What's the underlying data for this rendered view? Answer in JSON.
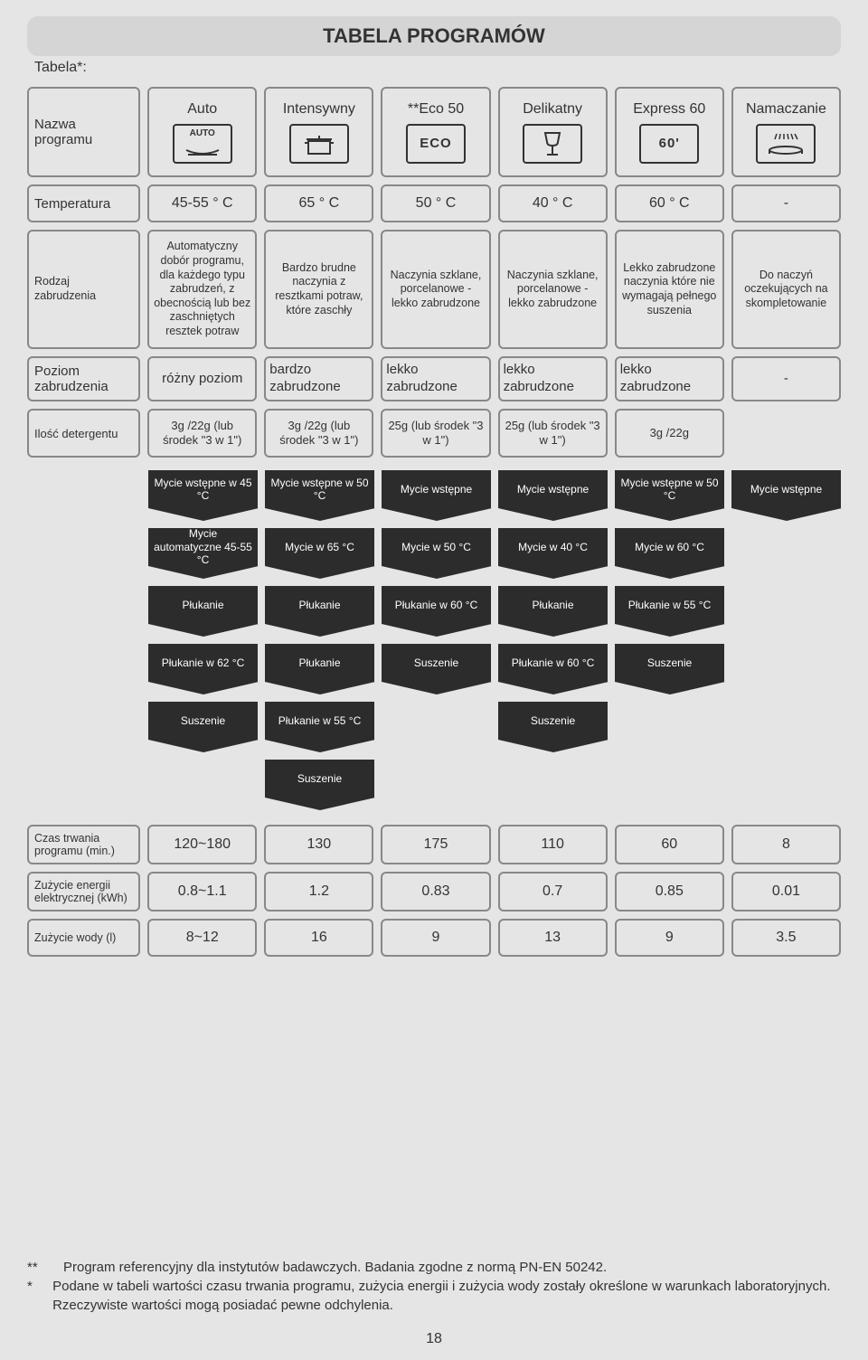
{
  "title": "TABELA PROGRAMÓW",
  "tabela_star": "Tabela*:",
  "row_labels": {
    "program": "Nazwa programu",
    "temp": "Temperatura",
    "soil": "Rodzaj zabrudzenia",
    "level": "Poziom zabrudzenia",
    "detergent": "Ilość detergentu",
    "duration": "Czas trwania programu (min.)",
    "energy": "Zużycie energii elektrycznej (kWh)",
    "water": "Zużycie wody (l)"
  },
  "programs": [
    {
      "name": "Auto",
      "icon_text": "AUTO",
      "icon_type": "auto"
    },
    {
      "name": "Intensywny",
      "icon_text": "",
      "icon_type": "pot"
    },
    {
      "name": "**Eco 50",
      "icon_text": "ECO",
      "icon_type": "eco"
    },
    {
      "name": "Delikatny",
      "icon_text": "",
      "icon_type": "glass"
    },
    {
      "name": "Express 60",
      "icon_text": "60'",
      "icon_type": "60"
    },
    {
      "name": "Namaczanie",
      "icon_text": "",
      "icon_type": "shower"
    }
  ],
  "temperatures": [
    "45-55 ° C",
    "65 ° C",
    "50 ° C",
    "40 ° C",
    "60 ° C",
    "-"
  ],
  "soil": [
    "Automatyczny dobór programu, dla każdego typu zabrudzeń, z obecnością lub bez zaschniętych resztek potraw",
    "Bardzo brudne naczynia z resztkami potraw, które zaschły",
    "Naczynia szklane, porcelanowe - lekko zabrudzone",
    "Naczynia szklane, porcelanowe - lekko zabrudzone",
    "Lekko zabrudzone naczynia które nie wymagają pełnego suszenia",
    "Do naczyń oczekujących na skompletowanie"
  ],
  "level": [
    "różny poziom",
    "bardzo zabrudzone",
    "lekko zabrudzone",
    "lekko zabrudzone",
    "lekko zabrudzone",
    "-"
  ],
  "detergent": [
    "3g /22g (lub środek \"3 w 1\")",
    "3g /22g (lub środek \"3 w 1\")",
    "25g (lub środek \"3 w 1\")",
    "25g (lub środek \"3 w 1\")",
    "3g /22g",
    ""
  ],
  "steps": [
    [
      "Mycie wstępne w 45 °C",
      "Mycie wstępne w 50 °C",
      "Mycie wstępne",
      "Mycie wstępne",
      "Mycie wstępne w 50 °C",
      "Mycie wstępne"
    ],
    [
      "Mycie automatyczne 45-55 °C",
      "Mycie w 65 °C",
      "Mycie w 50 °C",
      "Mycie w 40 °C",
      "Mycie w 60 °C",
      ""
    ],
    [
      "Płukanie",
      "Płukanie",
      "Płukanie w 60 °C",
      "Płukanie",
      "Płukanie w 55 °C",
      ""
    ],
    [
      "Płukanie w 62 °C",
      "Płukanie",
      "Suszenie",
      "Płukanie w 60 °C",
      "Suszenie",
      ""
    ],
    [
      "Suszenie",
      "Płukanie w 55 °C",
      "",
      "Suszenie",
      "",
      ""
    ],
    [
      "",
      "Suszenie",
      "",
      "",
      "",
      ""
    ]
  ],
  "duration": [
    "120~180",
    "130",
    "175",
    "110",
    "60",
    "8"
  ],
  "energy": [
    "0.8~1.1",
    "1.2",
    "0.83",
    "0.7",
    "0.85",
    "0.01"
  ],
  "water": [
    "8~12",
    "16",
    "9",
    "13",
    "9",
    "3.5"
  ],
  "footnotes": {
    "a_mark": "**",
    "a_text": "Program referencyjny dla instytutów badawczych. Badania zgodne z normą PN-EN 50242.",
    "b_mark": "*",
    "b_text": "Podane w tabeli wartości czasu trwania programu, zużycia energii i zużycia wody zostały określone w warunkach laboratoryjnych. Rzeczywiste wartości mogą posiadać pewne odchylenia."
  },
  "page_number": "18",
  "colors": {
    "dark": "#2c2c2c",
    "border": "#888",
    "bg": "#e5e5e5",
    "title_bg": "#d5d5d5"
  }
}
